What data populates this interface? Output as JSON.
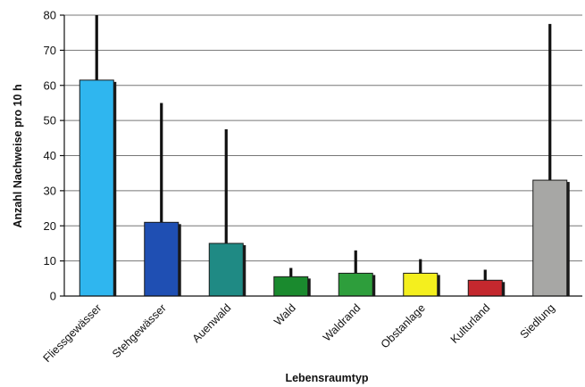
{
  "chart_data": {
    "type": "bar",
    "title": "",
    "xlabel": "Lebensraumtyp",
    "ylabel": "Anzahl Nachweise pro 10 h",
    "ylim": [
      0,
      80
    ],
    "yticks": [
      0,
      10,
      20,
      30,
      40,
      50,
      60,
      70,
      80
    ],
    "grid": true,
    "categories": [
      "Fliessgewässer",
      "Stehgewässer",
      "Auenwald",
      "Wald",
      "Waldrand",
      "Obstanlage",
      "Kulturland",
      "Siedlung"
    ],
    "values": [
      61.5,
      21,
      15,
      5.5,
      6.5,
      6.5,
      4.5,
      33
    ],
    "error_upper": [
      80,
      55,
      47.5,
      8,
      13,
      10.5,
      7.5,
      77.5
    ],
    "colors": [
      "#2fb6ef",
      "#1f4fb3",
      "#1f8a84",
      "#1a8a2e",
      "#2e9e3c",
      "#f4ef1e",
      "#c4282e",
      "#a7a7a5"
    ]
  }
}
